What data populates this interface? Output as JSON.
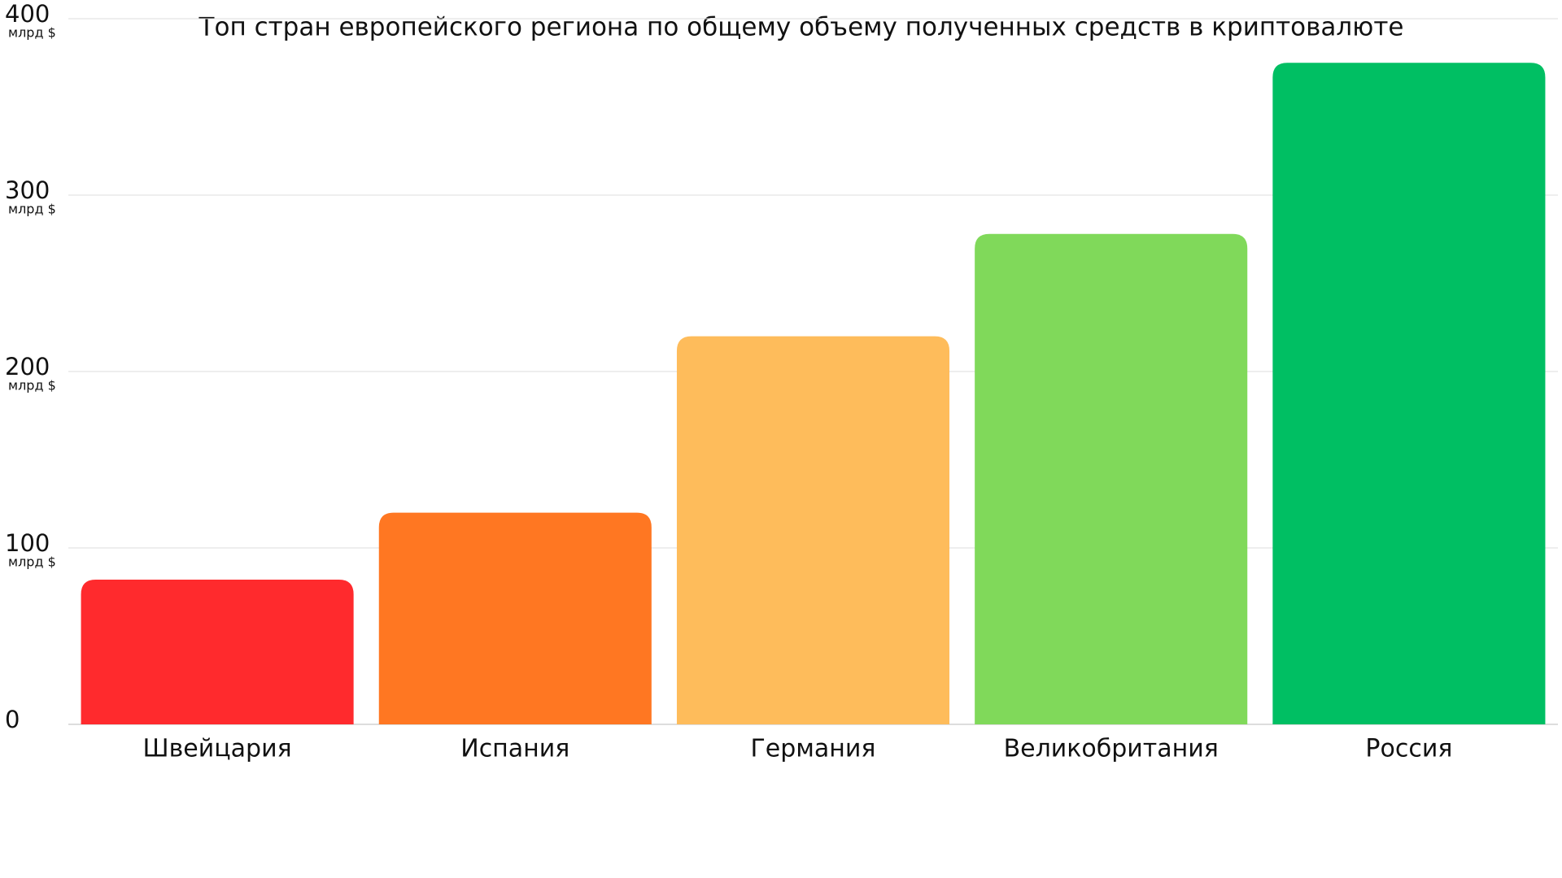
{
  "chart_data": {
    "type": "bar",
    "title": "Топ стран европейского региона по общему объему полученных средств в криптовалюте",
    "categories": [
      "Швейцария",
      "Испания",
      "Германия",
      "Великобритания",
      "Россия"
    ],
    "values": [
      82,
      120,
      220,
      278,
      375
    ],
    "colors": [
      "#ff2a2d",
      "#ff7722",
      "#febc5b",
      "#80d95a",
      "#00bf63"
    ],
    "ylim": [
      0,
      400
    ],
    "yticks": [
      0,
      100,
      200,
      300,
      400
    ],
    "y_unit": "млрд $",
    "grid": true
  }
}
